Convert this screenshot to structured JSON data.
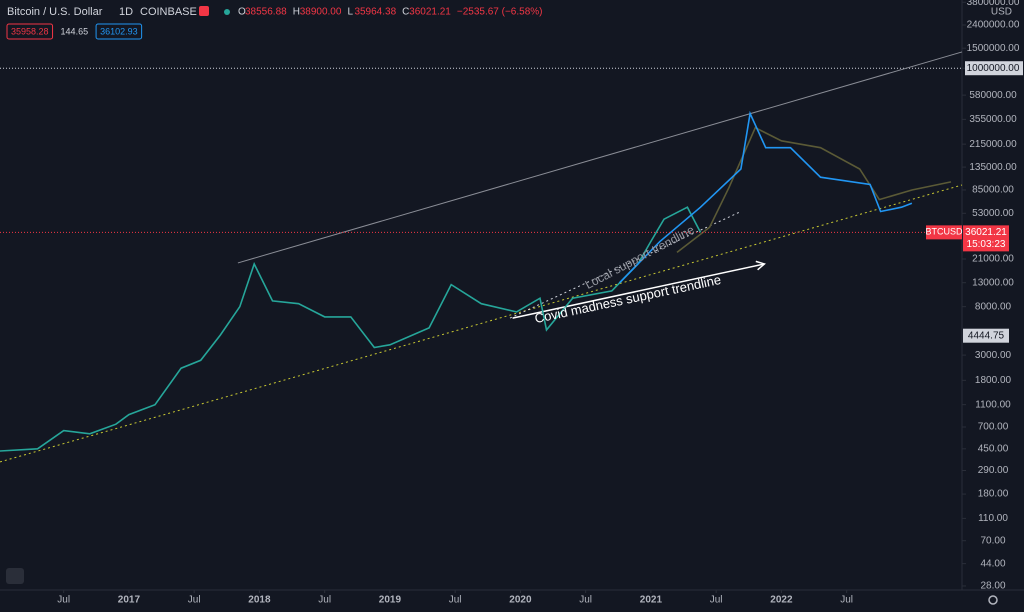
{
  "chart_data": {
    "type": "line",
    "header": {
      "symbol": "Bitcoin / U.S. Dollar",
      "interval": "1D",
      "exchange": "COINBASE",
      "ohlc": [
        [
          "O",
          "38556.88"
        ],
        [
          "H",
          "38900.00"
        ],
        [
          "L",
          "35964.38"
        ],
        [
          "C",
          "36021.21"
        ]
      ],
      "change": "−2535.67 (−6.58%)",
      "badges": [
        "35958.28",
        "144.65",
        "36102.93"
      ]
    },
    "y_unit": "USD",
    "log_scale": true,
    "xlim": [
      2016.012,
      2023.384
    ],
    "ylim": [
      25.8,
      3980000
    ],
    "xticks": [
      {
        "value": 2016.5,
        "label": "Jul"
      },
      2017,
      {
        "value": 2017.5,
        "label": "Jul"
      },
      2018,
      {
        "value": 2018.5,
        "label": "Jul"
      },
      2019,
      {
        "value": 2019.5,
        "label": "Jul"
      },
      2020,
      {
        "value": 2020.5,
        "label": "Jul"
      },
      2021,
      {
        "value": 2021.5,
        "label": "Jul"
      },
      2022,
      {
        "value": 2022.5,
        "label": "Jul"
      }
    ],
    "yticks": [
      {
        "value": 3800000,
        "label": "3800000.00"
      },
      {
        "value": 2400000,
        "label": "2400000.00"
      },
      {
        "value": 1500000,
        "label": "1500000.00"
      },
      {
        "value": 1000000,
        "label": "1000000.00"
      },
      {
        "value": 580000,
        "label": "580000.00"
      },
      {
        "value": 355000,
        "label": "355000.00"
      },
      {
        "value": 215000,
        "label": "215000.00"
      },
      {
        "value": 135000,
        "label": "135000.00"
      },
      {
        "value": 85000,
        "label": "85000.00"
      },
      {
        "value": 53000,
        "label": "53000.00"
      },
      {
        "value": 21000,
        "label": "21000.00"
      },
      {
        "value": 13000,
        "label": "13000.00"
      },
      {
        "value": 8000,
        "label": "8000.00"
      },
      {
        "value": 3000,
        "label": "3000.00"
      },
      {
        "value": 1800,
        "label": "1800.00"
      },
      {
        "value": 1100,
        "label": "1100.00"
      },
      {
        "value": 700,
        "label": "700.00"
      },
      {
        "value": 450,
        "label": "450.00"
      },
      {
        "value": 290,
        "label": "290.00"
      },
      {
        "value": 180,
        "label": "180.00"
      },
      {
        "value": 110,
        "label": "110.00"
      },
      {
        "value": 70,
        "label": "70.00"
      },
      {
        "value": 44,
        "label": "44.00"
      },
      {
        "value": 28,
        "label": "28.00"
      }
    ],
    "highlight_tick": 3,
    "series": [
      {
        "color": "#26a69a",
        "x": [
          2016.0,
          2016.3,
          2016.5,
          2016.7,
          2016.9,
          2017.0,
          2017.2,
          2017.4,
          2017.55,
          2017.7,
          2017.85,
          2017.96,
          2018.1,
          2018.3,
          2018.5,
          2018.7,
          2018.88,
          2019.0,
          2019.3,
          2019.47,
          2019.7,
          2019.97,
          2020.15,
          2020.2,
          2020.4,
          2020.7,
          2020.9,
          2021.0,
          2021.1,
          2021.28,
          2021.38
        ],
        "values": [
          430,
          450,
          650,
          610,
          740,
          900,
          1100,
          2300,
          2700,
          4500,
          8000,
          19000,
          9000,
          8500,
          6500,
          6500,
          3500,
          3700,
          5200,
          12500,
          8500,
          7200,
          9500,
          5000,
          9500,
          11000,
          19000,
          30000,
          47000,
          60000,
          36000
        ]
      },
      {
        "color": "#5b5a36",
        "x": [
          2021.2,
          2021.45,
          2021.6,
          2021.8,
          2022.0,
          2022.3,
          2022.6,
          2022.75,
          2023.0,
          2023.3
        ],
        "values": [
          24000,
          40000,
          90000,
          300000,
          230000,
          200000,
          130000,
          70000,
          85000,
          100000
        ]
      },
      {
        "color": "#2196f3",
        "x": [
          2020.76,
          2021.07,
          2021.38,
          2021.69,
          2021.76,
          2021.88,
          2022.07,
          2022.3,
          2022.68,
          2022.76,
          2022.92,
          2023.0
        ],
        "values": [
          13000,
          30000,
          60000,
          130000,
          400000,
          200000,
          200000,
          110000,
          95000,
          55000,
          60000,
          65000
        ]
      }
    ],
    "trendlines": [
      {
        "x": [
          2017.835,
          2023.384
        ],
        "y": [
          19400,
          1390000
        ],
        "color": "#8a8d96",
        "style": "solid"
      },
      {
        "x": [
          2016.012,
          2023.384
        ],
        "y": [
          345,
          94000
        ],
        "color": "#c8c832",
        "style": "dotted"
      },
      {
        "x": [
          2019.92,
          2021.68
        ],
        "y": [
          6350,
          54300
        ],
        "color": "#d1d4dc",
        "style": "dotted"
      },
      {
        "x": [
          2019.94,
          2021.87
        ],
        "y": [
          6350,
          19000
        ],
        "color": "#ffffff",
        "style": "arrow"
      }
    ],
    "annotations": [
      "Local support trendline",
      "Covid madness support trendline"
    ],
    "hline": {
      "value": 1000000,
      "color": "#d1d4dc"
    },
    "price_label": {
      "symbol": "BTCUSD",
      "value": 36021.21,
      "countdown": "15:03:23",
      "color": "#f23645"
    },
    "marker_label": {
      "value": 4444.75
    }
  }
}
